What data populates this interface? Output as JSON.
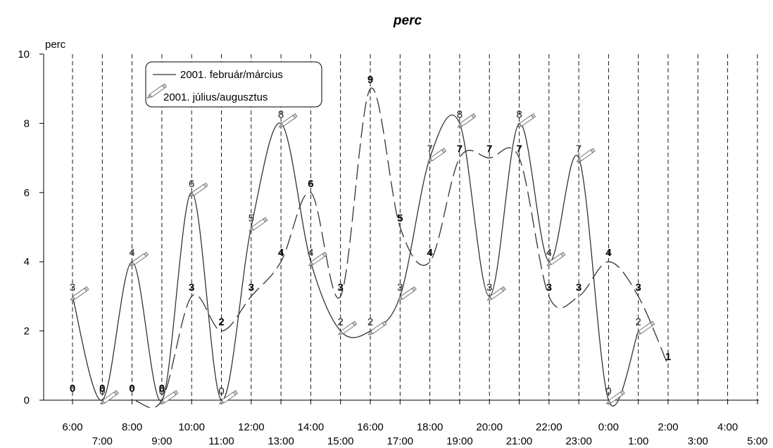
{
  "chart_data": {
    "type": "line",
    "title_partial": "perc",
    "ylabel": "perc",
    "ylim": [
      0,
      10
    ],
    "yticks": [
      0,
      2,
      4,
      6,
      8,
      10
    ],
    "categories": [
      "6:00",
      "7:00",
      "8:00",
      "9:00",
      "10:00",
      "11:00",
      "12:00",
      "13:00",
      "14:00",
      "15:00",
      "16:00",
      "17:00",
      "18:00",
      "19:00",
      "20:00",
      "21:00",
      "22:00",
      "23:00",
      "0:00",
      "1:00",
      "2:00",
      "3:00",
      "4:00",
      "5:00"
    ],
    "grid": "vertical dashed lines at each hour",
    "legend_position": "top-left",
    "series": [
      {
        "name": "2001. február/március",
        "style": "solid",
        "color": "#333333",
        "values": [
          3,
          0,
          4,
          0,
          6,
          0,
          5,
          8,
          4,
          2,
          2,
          3,
          7,
          8,
          3,
          8,
          4,
          7,
          0,
          2,
          null,
          null,
          null,
          null
        ]
      },
      {
        "name": "2001. július/augusztus",
        "style": "dashed",
        "color": "#333333",
        "values": [
          0,
          0,
          0,
          0,
          3,
          2,
          3,
          4,
          6,
          3,
          9,
          5,
          4,
          7,
          7,
          7,
          3,
          3,
          4,
          3,
          1,
          null,
          null,
          null
        ]
      }
    ]
  }
}
